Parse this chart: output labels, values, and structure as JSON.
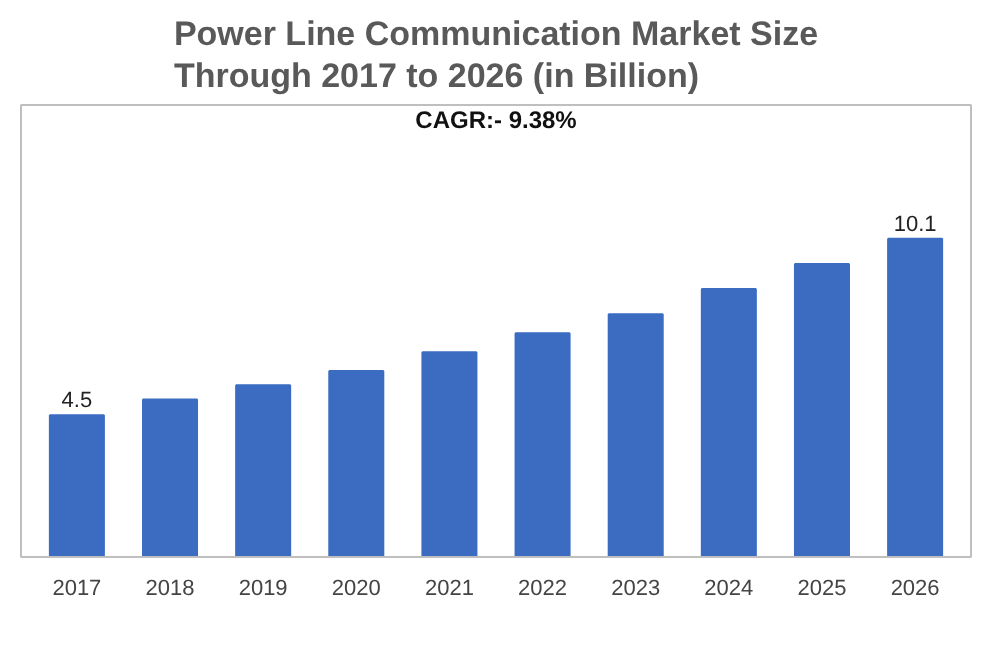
{
  "chart_data": {
    "type": "bar",
    "title": "Power Line Communication Market Size\nThrough 2017 to 2026 (in Billion)",
    "categories": [
      "2017",
      "2018",
      "2019",
      "2020",
      "2021",
      "2022",
      "2023",
      "2024",
      "2025",
      "2026"
    ],
    "values": [
      4.5,
      5.0,
      5.45,
      5.9,
      6.5,
      7.1,
      7.7,
      8.5,
      9.3,
      10.1
    ],
    "value_labels": [
      "4.5",
      null,
      null,
      null,
      null,
      null,
      null,
      null,
      null,
      "10.1"
    ],
    "color": "#3b6cc2",
    "annotations": [
      "CAGR:- 9.38%"
    ],
    "grid": false,
    "tick_labels": "x"
  }
}
